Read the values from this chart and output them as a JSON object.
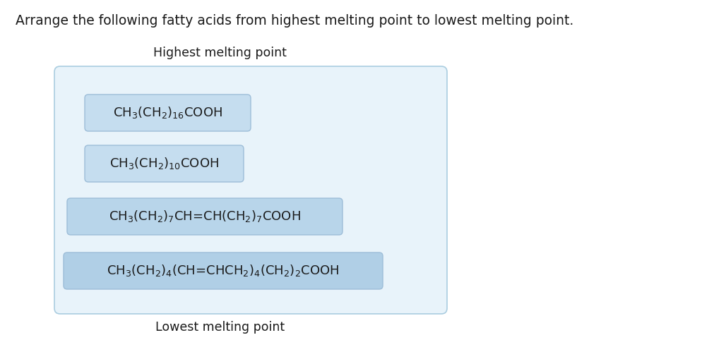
{
  "title": "Arrange the following fatty acids from highest melting point to lowest melting point.",
  "title_fontsize": 13.5,
  "highest_label": "Highest melting point",
  "lowest_label": "Lowest melting point",
  "label_fontsize": 12.5,
  "compounds": [
    "CH$_3$(CH$_2$)$_{16}$COOH",
    "CH$_3$(CH$_2$)$_{10}$COOH",
    "CH$_3$(CH$_2$)$_7$CH=CH(CH$_2$)$_7$COOH",
    "CH$_3$(CH$_2$)$_4$(CH=CHCH$_2$)$_4$(CH$_2$)$_2$COOH"
  ],
  "compound_fontsize": 13,
  "box_bg_colors": [
    "#c5ddef",
    "#c5ddef",
    "#b8d5ea",
    "#b0cfe6"
  ],
  "box_edge_color": "#9dbdd8",
  "outer_box_bg": "#e8f3fa",
  "outer_box_edge": "#aacde0",
  "text_color": "#1a1a1a",
  "bg_color": "#ffffff",
  "fig_width": 10.12,
  "fig_height": 4.92,
  "dpi": 100
}
